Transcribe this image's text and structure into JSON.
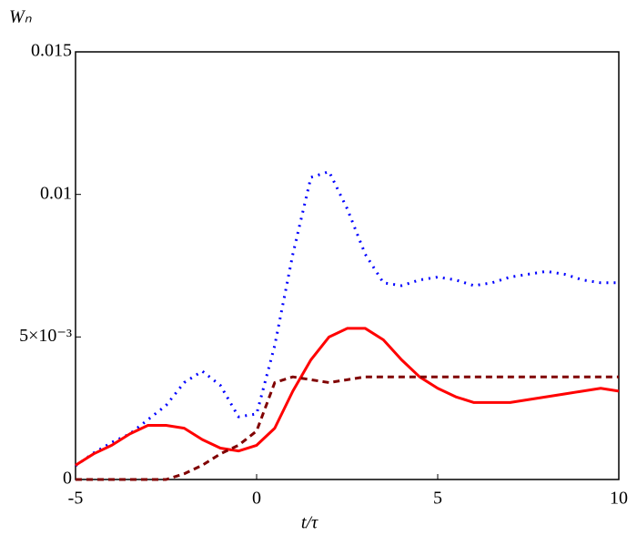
{
  "chart_data": {
    "type": "line",
    "x_label": "t/τ",
    "y_label": "Wₙ",
    "x": [
      -5,
      -4.5,
      -4,
      -3.5,
      -3,
      -2.5,
      -2,
      -1.5,
      -1,
      -0.5,
      0,
      0.5,
      1,
      1.5,
      2,
      2.5,
      3,
      3.5,
      4,
      4.5,
      5,
      5.5,
      6,
      6.5,
      7,
      7.5,
      8,
      8.5,
      9,
      9.5,
      10
    ],
    "series": [
      {
        "color": "#0000ff",
        "dash": "dotted",
        "values": [
          0.00048,
          0.00093,
          0.0013,
          0.0016,
          0.0021,
          0.0026,
          0.0034,
          0.0038,
          0.0033,
          0.0022,
          0.0023,
          0.0047,
          0.0079,
          0.0106,
          0.0108,
          0.0095,
          0.0079,
          0.0069,
          0.0068,
          0.007,
          0.0071,
          0.007,
          0.0068,
          0.0069,
          0.0071,
          0.0072,
          0.0073,
          0.0072,
          0.007,
          0.0069,
          0.0069
        ]
      },
      {
        "color": "#ff0000",
        "dash": "solid",
        "values": [
          0.0005,
          0.0009,
          0.0012,
          0.0016,
          0.0019,
          0.0019,
          0.0018,
          0.0014,
          0.0011,
          0.001,
          0.0012,
          0.0018,
          0.0031,
          0.0042,
          0.005,
          0.0053,
          0.0053,
          0.0049,
          0.0042,
          0.0036,
          0.0032,
          0.0029,
          0.0027,
          0.0027,
          0.0027,
          0.0028,
          0.0029,
          0.003,
          0.0031,
          0.0032,
          0.0031
        ]
      },
      {
        "color": "#800000",
        "dash": "dashed",
        "values": [
          0,
          0,
          0,
          0,
          0,
          0,
          0.0002,
          0.0005,
          0.0009,
          0.0012,
          0.0017,
          0.0034,
          0.0036,
          0.0035,
          0.0034,
          0.0035,
          0.0036,
          0.0036,
          0.0036,
          0.0036,
          0.0036,
          0.0036,
          0.0036,
          0.0036,
          0.0036,
          0.0036,
          0.0036,
          0.0036,
          0.0036,
          0.0036,
          0.0036
        ]
      }
    ],
    "xlim": [
      -5,
      10
    ],
    "xticks": [
      -5,
      0,
      5,
      10
    ],
    "ylim": [
      0,
      0.015
    ],
    "yticks": [
      0,
      {
        "value": 0.005,
        "label": "5×10⁻³"
      },
      0.01,
      0.015
    ]
  }
}
